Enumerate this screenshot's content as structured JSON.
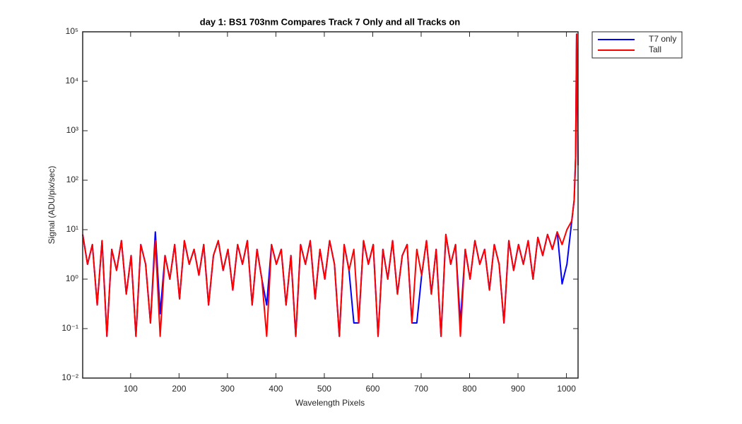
{
  "chart_data": {
    "type": "line",
    "title": "day 1: BS1  703nm  Compares Track 7 Only and all Tracks on",
    "xlabel": "Wavelength Pixels",
    "ylabel": "Signal (ADU/pix/sec)",
    "yscale": "log",
    "legend": "outside-top-right",
    "xlim": [
      1,
      1024
    ],
    "xticks": [
      100,
      200,
      300,
      400,
      500,
      600,
      700,
      800,
      900,
      1000
    ],
    "ylim": [
      0.01,
      100000
    ],
    "yticks": [
      {
        "value": 0.01,
        "label": "10⁻²"
      },
      {
        "value": 0.1,
        "label": "10⁻¹"
      },
      {
        "value": 1,
        "label": "10⁰"
      },
      {
        "value": 10,
        "label": "10¹"
      },
      {
        "value": 100,
        "label": "10²"
      },
      {
        "value": 1000,
        "label": "10³"
      },
      {
        "value": 10000,
        "label": "10⁴"
      },
      {
        "value": 100000,
        "label": "10⁵"
      }
    ],
    "x": [
      1,
      11,
      21,
      31,
      41,
      51,
      61,
      71,
      81,
      91,
      101,
      111,
      121,
      131,
      141,
      151,
      161,
      171,
      181,
      191,
      201,
      211,
      221,
      231,
      241,
      251,
      261,
      271,
      281,
      291,
      301,
      311,
      321,
      331,
      341,
      351,
      361,
      371,
      381,
      391,
      401,
      411,
      421,
      431,
      441,
      451,
      461,
      471,
      481,
      491,
      501,
      511,
      521,
      531,
      541,
      551,
      561,
      571,
      581,
      591,
      601,
      611,
      621,
      631,
      641,
      651,
      661,
      671,
      681,
      691,
      701,
      711,
      721,
      731,
      741,
      751,
      761,
      771,
      781,
      791,
      801,
      811,
      821,
      831,
      841,
      851,
      861,
      871,
      881,
      891,
      901,
      911,
      921,
      931,
      941,
      951,
      961,
      971,
      981,
      991,
      1001,
      1011,
      1016,
      1019,
      1021,
      1023,
      1024
    ],
    "series": [
      {
        "name": "T7 only",
        "color": "#0000ff",
        "values": [
          8,
          2,
          5,
          0.3,
          6,
          0.07,
          4,
          1.5,
          6,
          0.5,
          3,
          0.07,
          5,
          2,
          0.13,
          9,
          0.2,
          3,
          1,
          5,
          0.4,
          6,
          2,
          4,
          1.2,
          5,
          0.3,
          3,
          6,
          1.5,
          4,
          0.6,
          5,
          2,
          6,
          0.3,
          4,
          1,
          0.3,
          5,
          2,
          4,
          0.3,
          3,
          0.07,
          5,
          2,
          6,
          0.4,
          4,
          1,
          6,
          2,
          0.07,
          5,
          1.5,
          0.13,
          0.13,
          6,
          2,
          5,
          0.07,
          4,
          1,
          6,
          0.5,
          3,
          5,
          0.13,
          0.13,
          1.2,
          6,
          0.5,
          4,
          0.07,
          8,
          2,
          5,
          0.13,
          4,
          1,
          6,
          2,
          4,
          0.6,
          5,
          2,
          0.13,
          6,
          1.5,
          5,
          2,
          6,
          1,
          7,
          3,
          8,
          4,
          9,
          0.8,
          2,
          15,
          40,
          300,
          90000,
          2000,
          200
        ]
      },
      {
        "name": "Tall",
        "color": "#ff0000",
        "values": [
          8,
          2,
          5,
          0.3,
          6,
          0.07,
          4,
          1.5,
          6,
          0.5,
          3,
          0.07,
          5,
          2,
          0.13,
          6,
          0.07,
          3,
          1,
          5,
          0.4,
          6,
          2,
          4,
          1.2,
          5,
          0.3,
          3,
          6,
          1.5,
          4,
          0.6,
          5,
          2,
          6,
          0.3,
          4,
          1,
          0.07,
          5,
          2,
          4,
          0.3,
          3,
          0.07,
          5,
          2,
          6,
          0.4,
          4,
          1,
          6,
          2,
          0.07,
          5,
          1.5,
          4,
          0.13,
          6,
          2,
          5,
          0.07,
          4,
          1,
          6,
          0.5,
          3,
          5,
          0.13,
          4,
          1.2,
          6,
          0.5,
          4,
          0.07,
          8,
          2,
          5,
          0.07,
          4,
          1,
          6,
          2,
          4,
          0.6,
          5,
          2,
          0.13,
          6,
          1.5,
          5,
          2,
          6,
          1,
          7,
          3,
          8,
          4,
          9,
          5,
          10,
          15,
          40,
          300,
          90000,
          2000,
          200
        ]
      }
    ]
  }
}
